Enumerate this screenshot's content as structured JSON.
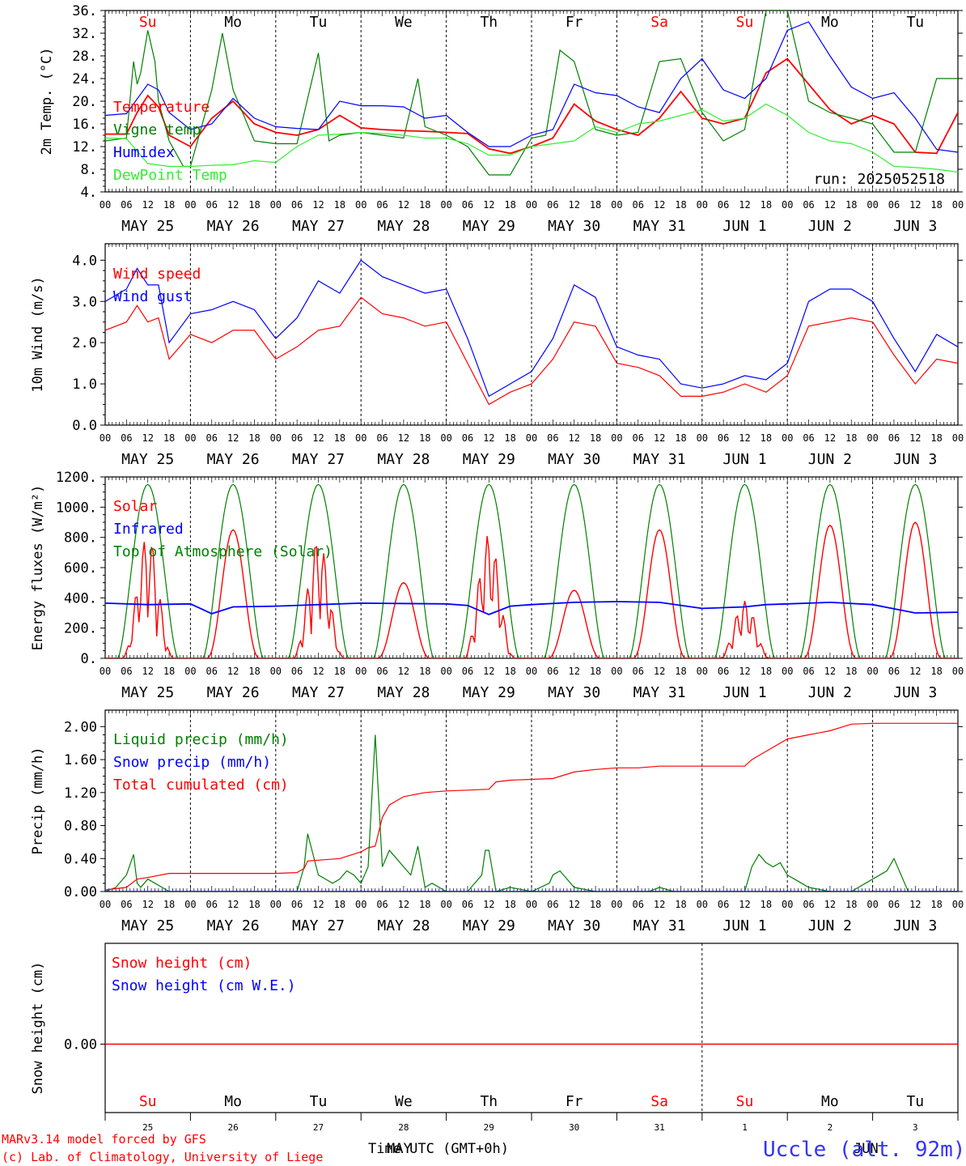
{
  "colors": {
    "red": "#ff0000",
    "green": "#008000",
    "blue": "#0000ff",
    "lime": "#33ee33",
    "axis": "#000000"
  },
  "days": [
    {
      "label": "MAY 25",
      "dow": "Su",
      "num": "25",
      "weekend": true
    },
    {
      "label": "MAY 26",
      "dow": "Mo",
      "num": "26",
      "weekend": false
    },
    {
      "label": "MAY 27",
      "dow": "Tu",
      "num": "27",
      "weekend": false
    },
    {
      "label": "MAY 28",
      "dow": "We",
      "num": "28",
      "weekend": false
    },
    {
      "label": "MAY 29",
      "dow": "Th",
      "num": "29",
      "weekend": false
    },
    {
      "label": "MAY 30",
      "dow": "Fr",
      "num": "30",
      "weekend": false
    },
    {
      "label": "MAY 31",
      "dow": "Sa",
      "num": "31",
      "weekend": true
    },
    {
      "label": "JUN  1",
      "dow": "Su",
      "num": "1",
      "weekend": true
    },
    {
      "label": "JUN  2",
      "dow": "Mo",
      "num": "2",
      "weekend": false
    },
    {
      "label": "JUN  3",
      "dow": "Tu",
      "num": "3",
      "weekend": false
    }
  ],
  "hour_labels": [
    "00",
    "06",
    "12",
    "18"
  ],
  "footer": {
    "credit_line1": "MARv3.14 model forced by GFS",
    "credit_line2": "(c) Lab. of Climatology, University of Liege",
    "time_label": "Time UTC (GMT+0h)",
    "month_overlay_may": "MAY",
    "month_overlay_jun": "JUN",
    "station": "Uccle (alt. 92m)"
  },
  "chart_data": [
    {
      "type": "line",
      "ylabel": "2m Temp. (°C)",
      "ylim": [
        4,
        36
      ],
      "yticks": [
        "4.",
        "8.",
        "12.",
        "16.",
        "20.",
        "24.",
        "28.",
        "32.",
        "36."
      ],
      "annotation": "run: 2025052518",
      "x_unit": "hours since 2025-05-25 00 UTC",
      "series": [
        {
          "name": "Temperature",
          "color": "#ff0000",
          "x": [
            0,
            6,
            9,
            12,
            15,
            18,
            24,
            30,
            36,
            42,
            48,
            54,
            60,
            66,
            72,
            78,
            84,
            90,
            96,
            102,
            108,
            114,
            120,
            126,
            132,
            138,
            144,
            150,
            156,
            162,
            168,
            174,
            180,
            186,
            192,
            198,
            204,
            210,
            216,
            222,
            228,
            234,
            240
          ],
          "y": [
            14.2,
            14.2,
            18,
            21,
            19,
            14,
            12,
            17,
            20,
            16,
            14.5,
            14,
            15,
            17.5,
            15.3,
            15,
            14.8,
            14.7,
            14.5,
            14.3,
            11.6,
            10.8,
            12,
            13.5,
            19.5,
            16.5,
            15,
            14,
            17,
            21.7,
            17,
            16,
            17,
            25,
            27.5,
            23,
            18.5,
            16,
            17.5,
            16,
            11,
            10.8,
            18
          ]
        },
        {
          "name": "Vigne temp",
          "color": "#008000",
          "x": [
            0,
            6,
            8,
            9,
            10,
            12,
            14,
            15,
            18,
            22,
            24,
            30,
            33,
            36,
            42,
            48,
            54,
            60,
            63,
            66,
            72,
            84,
            88,
            90,
            96,
            102,
            108,
            114,
            120,
            124,
            128,
            132,
            138,
            144,
            150,
            156,
            162,
            168,
            174,
            180,
            186,
            192,
            198,
            204,
            210,
            216,
            222,
            228,
            234,
            240
          ],
          "y": [
            13,
            13.5,
            27,
            23,
            25,
            32.5,
            27,
            20,
            13,
            8.5,
            8.5,
            22,
            32,
            22,
            13,
            12.5,
            12.5,
            28.5,
            13,
            14,
            14.5,
            13.5,
            24,
            15.5,
            14,
            12,
            7,
            7,
            13.5,
            14,
            29,
            27,
            15,
            14,
            14.5,
            27,
            27.5,
            18,
            13,
            15,
            36,
            36,
            20,
            18,
            17,
            16,
            11,
            11,
            24,
            24
          ]
        },
        {
          "name": "Humidex",
          "color": "#0000ff",
          "x": [
            0,
            6,
            12,
            15,
            18,
            24,
            30,
            36,
            42,
            48,
            54,
            60,
            66,
            72,
            78,
            84,
            90,
            96,
            102,
            108,
            114,
            120,
            126,
            132,
            138,
            144,
            150,
            156,
            162,
            168,
            174,
            180,
            186,
            192,
            198,
            204,
            210,
            216,
            222,
            228,
            234,
            240
          ],
          "y": [
            17.5,
            17.8,
            23,
            22,
            18,
            15,
            16,
            20.5,
            17,
            15.5,
            15.2,
            15,
            20,
            19.2,
            19.2,
            19,
            17,
            17.5,
            14.5,
            12,
            12,
            14,
            15,
            23,
            21.5,
            21,
            19,
            18,
            24,
            27.5,
            22,
            20.5,
            24,
            32.5,
            34,
            28,
            22.5,
            20.5,
            21.5,
            17,
            11.5,
            11
          ]
        },
        {
          "name": "DewPoint Temp",
          "color": "#33ee33",
          "x": [
            0,
            6,
            12,
            18,
            24,
            30,
            36,
            42,
            48,
            54,
            60,
            66,
            72,
            78,
            84,
            90,
            96,
            102,
            108,
            114,
            120,
            126,
            132,
            138,
            144,
            150,
            156,
            162,
            168,
            174,
            180,
            186,
            192,
            198,
            204,
            210,
            216,
            222,
            228,
            234,
            240
          ],
          "y": [
            13.5,
            13.4,
            9,
            8.5,
            8.5,
            8.7,
            8.8,
            9.5,
            9.2,
            12,
            14,
            14.2,
            14.5,
            14.3,
            14,
            13.5,
            13.5,
            12.5,
            10.5,
            10.5,
            12,
            12.5,
            13,
            15.5,
            14.5,
            16,
            16.5,
            17.5,
            18.5,
            16.5,
            17,
            19.5,
            17.5,
            14.5,
            13,
            12.5,
            11,
            8.5,
            8.3,
            8,
            7.5
          ]
        }
      ]
    },
    {
      "type": "line",
      "ylabel": "10m Wind (m/s)",
      "ylim": [
        0,
        4.4
      ],
      "yticks": [
        "0.0",
        "1.0",
        "2.0",
        "3.0",
        "4.0"
      ],
      "x_unit": "hours since 2025-05-25 00 UTC",
      "series": [
        {
          "name": "Wind speed",
          "color": "#ff0000",
          "x": [
            0,
            6,
            9,
            12,
            15,
            18,
            24,
            30,
            36,
            42,
            48,
            54,
            60,
            66,
            72,
            78,
            84,
            90,
            96,
            102,
            108,
            114,
            120,
            126,
            132,
            138,
            144,
            150,
            156,
            162,
            168,
            174,
            180,
            186,
            192,
            198,
            204,
            210,
            216,
            222,
            228,
            234,
            240
          ],
          "y": [
            2.3,
            2.5,
            2.9,
            2.5,
            2.6,
            1.6,
            2.2,
            2.0,
            2.3,
            2.3,
            1.6,
            1.9,
            2.3,
            2.4,
            3.1,
            2.7,
            2.6,
            2.4,
            2.5,
            1.5,
            0.5,
            0.8,
            1.0,
            1.6,
            2.5,
            2.4,
            1.5,
            1.4,
            1.2,
            0.7,
            0.7,
            0.8,
            1.0,
            0.8,
            1.2,
            2.4,
            2.5,
            2.6,
            2.5,
            1.7,
            1.0,
            1.6,
            1.5
          ]
        },
        {
          "name": "Wind gust",
          "color": "#0000ff",
          "x": [
            0,
            6,
            9,
            12,
            15,
            18,
            24,
            30,
            36,
            42,
            48,
            54,
            60,
            66,
            72,
            78,
            84,
            90,
            96,
            102,
            108,
            114,
            120,
            126,
            132,
            138,
            144,
            150,
            156,
            162,
            168,
            174,
            180,
            186,
            192,
            198,
            204,
            210,
            216,
            222,
            228,
            234,
            240
          ],
          "y": [
            3.0,
            3.3,
            3.8,
            3.4,
            3.4,
            2.0,
            2.7,
            2.8,
            3.0,
            2.8,
            2.1,
            2.6,
            3.5,
            3.2,
            4.0,
            3.6,
            3.4,
            3.2,
            3.3,
            2.1,
            0.7,
            1.0,
            1.3,
            2.1,
            3.4,
            3.1,
            1.9,
            1.7,
            1.6,
            1.0,
            0.9,
            1.0,
            1.2,
            1.1,
            1.5,
            3.0,
            3.3,
            3.3,
            3.0,
            2.1,
            1.3,
            2.2,
            1.9
          ]
        }
      ]
    },
    {
      "type": "line",
      "ylabel": "Energy fluxes (W/m²)",
      "ylim": [
        0,
        1200
      ],
      "yticks": [
        "0.",
        "200.",
        "400.",
        "600.",
        "800.",
        "1000.",
        "1200."
      ],
      "x_unit": "hours since 2025-05-25 00 UTC",
      "series": [
        {
          "name": "Solar",
          "color": "#ff0000",
          "daily_peaks": [
            820,
            850,
            790,
            500,
            820,
            450,
            850,
            380,
            880,
            900
          ]
        },
        {
          "name": "Infrared",
          "color": "#0000ff",
          "x": [
            0,
            12,
            24,
            30,
            36,
            48,
            60,
            72,
            96,
            102,
            108,
            114,
            120,
            132,
            144,
            156,
            168,
            180,
            186,
            192,
            204,
            216,
            228,
            240
          ],
          "y": [
            365,
            355,
            360,
            295,
            340,
            345,
            355,
            365,
            360,
            350,
            290,
            345,
            355,
            370,
            375,
            370,
            330,
            340,
            355,
            360,
            370,
            355,
            300,
            305
          ]
        },
        {
          "name": "Top of Atmosphere (Solar)",
          "color": "#008000",
          "daily_peak": 1150
        }
      ]
    },
    {
      "type": "line",
      "ylabel": "Precip (mm/h)",
      "ylim": [
        0,
        2.2
      ],
      "yticks": [
        "0.00",
        "0.40",
        "0.80",
        "1.20",
        "1.60",
        "2.00"
      ],
      "x_unit": "hours since 2025-05-25 00 UTC",
      "series": [
        {
          "name": "Liquid precip (mm/h)",
          "color": "#008000",
          "x": [
            0,
            3,
            6,
            8,
            9,
            10,
            12,
            14,
            16,
            18,
            24,
            42,
            48,
            54,
            56,
            57,
            60,
            64,
            66,
            68,
            70,
            72,
            74,
            76,
            78,
            80,
            82,
            84,
            86,
            88,
            90,
            92,
            96,
            102,
            106,
            107,
            108,
            110,
            114,
            120,
            125,
            126,
            128,
            132,
            138,
            144,
            150,
            153,
            156,
            160,
            162,
            168,
            174,
            180,
            182,
            184,
            186,
            188,
            190,
            192,
            194,
            196,
            198,
            204,
            210,
            216,
            220,
            222,
            226,
            240
          ],
          "y": [
            0,
            0.05,
            0.2,
            0.45,
            0.1,
            0.05,
            0.15,
            0.1,
            0.05,
            0,
            0,
            0,
            0,
            0,
            0.3,
            0.7,
            0.2,
            0.1,
            0.15,
            0.25,
            0.2,
            0.1,
            0.3,
            1.9,
            0.3,
            0.5,
            0.4,
            0.3,
            0.2,
            0.55,
            0.05,
            0.1,
            0,
            0,
            0.2,
            0.5,
            0.5,
            0,
            0.05,
            0,
            0.1,
            0.2,
            0.25,
            0.05,
            0,
            0,
            0,
            0,
            0.05,
            0,
            0,
            0,
            0,
            0,
            0.3,
            0.45,
            0.35,
            0.3,
            0.35,
            0.2,
            0.15,
            0.1,
            0.05,
            0,
            0,
            0.15,
            0.25,
            0.4,
            0,
            0
          ]
        },
        {
          "name": "Snow precip (mm/h)",
          "color": "#0000ff",
          "x": [
            0,
            240
          ],
          "y": [
            0,
            0
          ]
        },
        {
          "name": "Total cumulated (cm)",
          "color": "#ff0000",
          "x": [
            0,
            6,
            9,
            12,
            18,
            24,
            42,
            48,
            54,
            56,
            57,
            60,
            66,
            72,
            74,
            76,
            78,
            80,
            84,
            90,
            96,
            102,
            108,
            110,
            114,
            120,
            126,
            132,
            138,
            144,
            150,
            156,
            162,
            168,
            174,
            180,
            182,
            186,
            192,
            198,
            204,
            210,
            216,
            222,
            228,
            234,
            240
          ],
          "y": [
            0.02,
            0.05,
            0.15,
            0.17,
            0.22,
            0.22,
            0.22,
            0.22,
            0.23,
            0.28,
            0.37,
            0.38,
            0.4,
            0.48,
            0.53,
            0.55,
            0.9,
            1.05,
            1.15,
            1.2,
            1.22,
            1.23,
            1.24,
            1.33,
            1.35,
            1.36,
            1.37,
            1.45,
            1.48,
            1.5,
            1.5,
            1.52,
            1.52,
            1.52,
            1.52,
            1.52,
            1.6,
            1.7,
            1.85,
            1.9,
            1.95,
            2.03,
            2.04,
            2.04,
            2.04,
            2.04,
            2.04
          ]
        }
      ]
    },
    {
      "type": "line",
      "ylabel": "Snow height (cm)",
      "yticks": [
        "0.00"
      ],
      "x_unit": "hours since 2025-05-25 00 UTC",
      "series": [
        {
          "name": "Snow height (cm)",
          "color": "#ff0000",
          "x": [
            0,
            240
          ],
          "y": [
            0,
            0
          ]
        },
        {
          "name": "Snow height (cm W.E.)",
          "color": "#0000ff",
          "x": [
            0,
            240
          ],
          "y": [
            0,
            0
          ]
        }
      ]
    }
  ]
}
